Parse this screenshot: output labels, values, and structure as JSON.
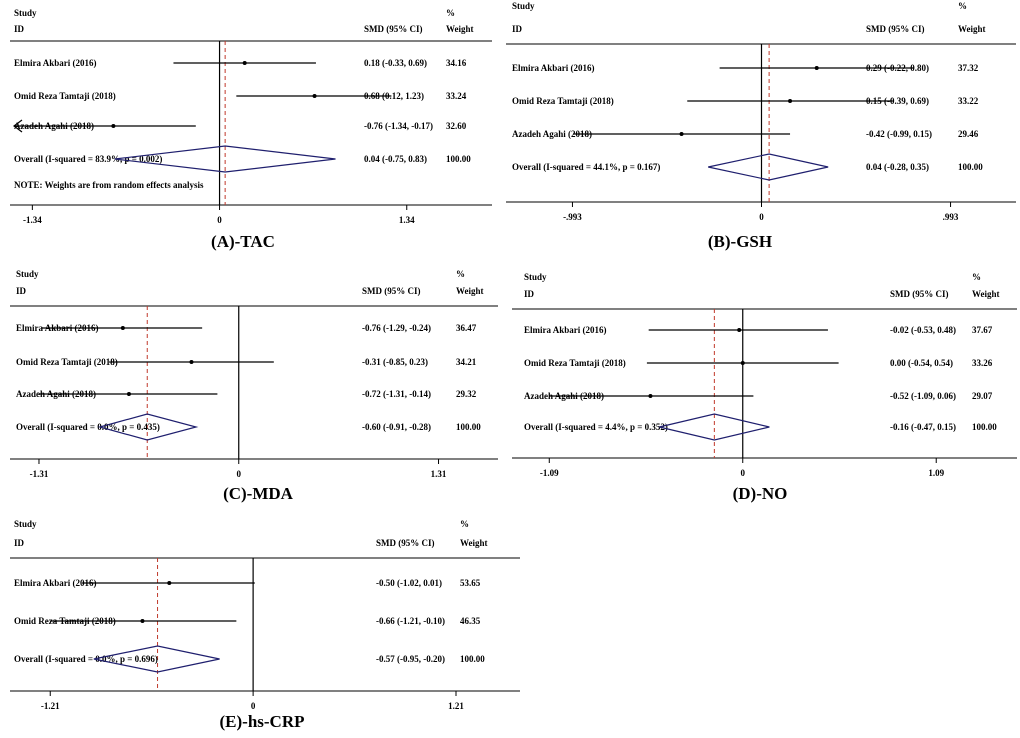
{
  "colors": {
    "ci_line": "#000000",
    "diamond": "#1f1f6e",
    "null_line": "#000000",
    "overall_line": "#c0392b",
    "axis": "#000000"
  },
  "chart_data": [
    {
      "type": "forest",
      "caption": "(A)-TAC",
      "header": {
        "study": "Study",
        "id": "ID",
        "smd": "SMD (95% CI)",
        "pct": "%",
        "weight": "Weight"
      },
      "xlim": [
        -1.5,
        1.85
      ],
      "ticks": [
        {
          "value": -1.34,
          "label": "-1.34"
        },
        {
          "value": 0,
          "label": "0"
        },
        {
          "value": 1.34,
          "label": "1.34"
        }
      ],
      "studies": [
        {
          "name": "Elmira Akbari (2016)",
          "smd": 0.18,
          "lo": -0.33,
          "hi": 0.69,
          "ci_text": "0.18 (-0.33, 0.69)",
          "weight": "34.16"
        },
        {
          "name": "Omid Reza Tamtaji (2018)",
          "smd": 0.68,
          "lo": 0.12,
          "hi": 1.23,
          "ci_text": "0.68 (0.12, 1.23)",
          "weight": "33.24"
        },
        {
          "name": "Azadeh Agahi (2018)",
          "smd": -0.76,
          "lo": -1.34,
          "hi": -0.17,
          "ci_text": "-0.76 (-1.34, -0.17)",
          "weight": "32.60",
          "arrow_left": true
        }
      ],
      "overall": {
        "name": "Overall (I-squared = 83.9%, p = 0.002)",
        "smd": 0.04,
        "lo": -0.75,
        "hi": 0.83,
        "ci_text": "0.04 (-0.75, 0.83)",
        "weight": "100.00"
      },
      "note": "NOTE: Weights are from random effects analysis"
    },
    {
      "type": "forest",
      "caption": "(B)-GSH",
      "header": {
        "study": "Study",
        "id": "ID",
        "smd": "SMD (95% CI)",
        "pct": "%",
        "weight": "Weight"
      },
      "xlim": [
        -1.3,
        1.3
      ],
      "ticks": [
        {
          "value": -0.993,
          "label": "-.993"
        },
        {
          "value": 0,
          "label": "0"
        },
        {
          "value": 0.993,
          "label": ".993"
        }
      ],
      "studies": [
        {
          "name": "Elmira Akbari (2016)",
          "smd": 0.29,
          "lo": -0.22,
          "hi": 0.8,
          "ci_text": "0.29 (-0.22, 0.80)",
          "weight": "37.32"
        },
        {
          "name": "Omid Reza Tamtaji (2018)",
          "smd": 0.15,
          "lo": -0.39,
          "hi": 0.69,
          "ci_text": "0.15 (-0.39, 0.69)",
          "weight": "33.22"
        },
        {
          "name": "Azadeh Agahi (2018)",
          "smd": -0.42,
          "lo": -0.99,
          "hi": 0.15,
          "ci_text": "-0.42 (-0.99, 0.15)",
          "weight": "29.46"
        }
      ],
      "overall": {
        "name": "Overall (I-squared = 44.1%, p = 0.167)",
        "smd": 0.04,
        "lo": -0.28,
        "hi": 0.35,
        "ci_text": "0.04 (-0.28, 0.35)",
        "weight": "100.00"
      }
    },
    {
      "type": "forest",
      "caption": "(C)-MDA",
      "header": {
        "study": "Study",
        "id": "ID",
        "smd": "SMD (95% CI)",
        "pct": "%",
        "weight": "Weight"
      },
      "xlim": [
        -1.5,
        1.7
      ],
      "ticks": [
        {
          "value": -1.31,
          "label": "-1.31"
        },
        {
          "value": 0,
          "label": "0"
        },
        {
          "value": 1.31,
          "label": "1.31"
        }
      ],
      "studies": [
        {
          "name": "Elmira Akbari (2016)",
          "smd": -0.76,
          "lo": -1.29,
          "hi": -0.24,
          "ci_text": "-0.76 (-1.29, -0.24)",
          "weight": "36.47"
        },
        {
          "name": "Omid Reza Tamtaji (2018)",
          "smd": -0.31,
          "lo": -0.85,
          "hi": 0.23,
          "ci_text": "-0.31 (-0.85, 0.23)",
          "weight": "34.21"
        },
        {
          "name": "Azadeh Agahi (2018)",
          "smd": -0.72,
          "lo": -1.31,
          "hi": -0.14,
          "ci_text": "-0.72 (-1.31, -0.14)",
          "weight": "29.32"
        }
      ],
      "overall": {
        "name": "Overall (I-squared = 0.0%, p = 0.435)",
        "smd": -0.6,
        "lo": -0.91,
        "hi": -0.28,
        "ci_text": "-0.60 (-0.91, -0.28)",
        "weight": "100.00"
      }
    },
    {
      "type": "forest",
      "caption": "(D)-NO",
      "header": {
        "study": "Study",
        "id": "ID",
        "smd": "SMD (95% CI)",
        "pct": "%",
        "weight": "Weight"
      },
      "xlim": [
        -1.3,
        1.5
      ],
      "ticks": [
        {
          "value": -1.09,
          "label": "-1.09"
        },
        {
          "value": 0,
          "label": "0"
        },
        {
          "value": 1.09,
          "label": "1.09"
        }
      ],
      "studies": [
        {
          "name": "Elmira Akbari (2016)",
          "smd": -0.02,
          "lo": -0.53,
          "hi": 0.48,
          "ci_text": "-0.02 (-0.53, 0.48)",
          "weight": "37.67"
        },
        {
          "name": "Omid Reza Tamtaji (2018)",
          "smd": 0.0,
          "lo": -0.54,
          "hi": 0.54,
          "ci_text": "0.00 (-0.54, 0.54)",
          "weight": "33.26"
        },
        {
          "name": "Azadeh Agahi (2018)",
          "smd": -0.52,
          "lo": -1.09,
          "hi": 0.06,
          "ci_text": "-0.52 (-1.09, 0.06)",
          "weight": "29.07"
        }
      ],
      "overall": {
        "name": "Overall (I-squared = 4.4%, p = 0.352)",
        "smd": -0.16,
        "lo": -0.47,
        "hi": 0.15,
        "ci_text": "-0.16 (-0.47, 0.15)",
        "weight": "100.00"
      }
    },
    {
      "type": "forest",
      "caption": "(E)-hs-CRP",
      "header": {
        "study": "Study",
        "id": "ID",
        "smd": "SMD (95% CI)",
        "pct": "%",
        "weight": "Weight"
      },
      "xlim": [
        -1.45,
        1.55
      ],
      "ticks": [
        {
          "value": -1.21,
          "label": "-1.21"
        },
        {
          "value": 0,
          "label": "0"
        },
        {
          "value": 1.21,
          "label": "1.21"
        }
      ],
      "studies": [
        {
          "name": "Elmira Akbari (2016)",
          "smd": -0.5,
          "lo": -1.02,
          "hi": 0.01,
          "ci_text": "-0.50 (-1.02, 0.01)",
          "weight": "53.65"
        },
        {
          "name": "Omid Reza Tamtaji (2018)",
          "smd": -0.66,
          "lo": -1.21,
          "hi": -0.1,
          "ci_text": "-0.66 (-1.21, -0.10)",
          "weight": "46.35"
        }
      ],
      "overall": {
        "name": "Overall (I-squared = 0.0%, p = 0.696)",
        "smd": -0.57,
        "lo": -0.95,
        "hi": -0.2,
        "ci_text": "-0.57 (-0.95, -0.20)",
        "weight": "100.00"
      }
    }
  ]
}
